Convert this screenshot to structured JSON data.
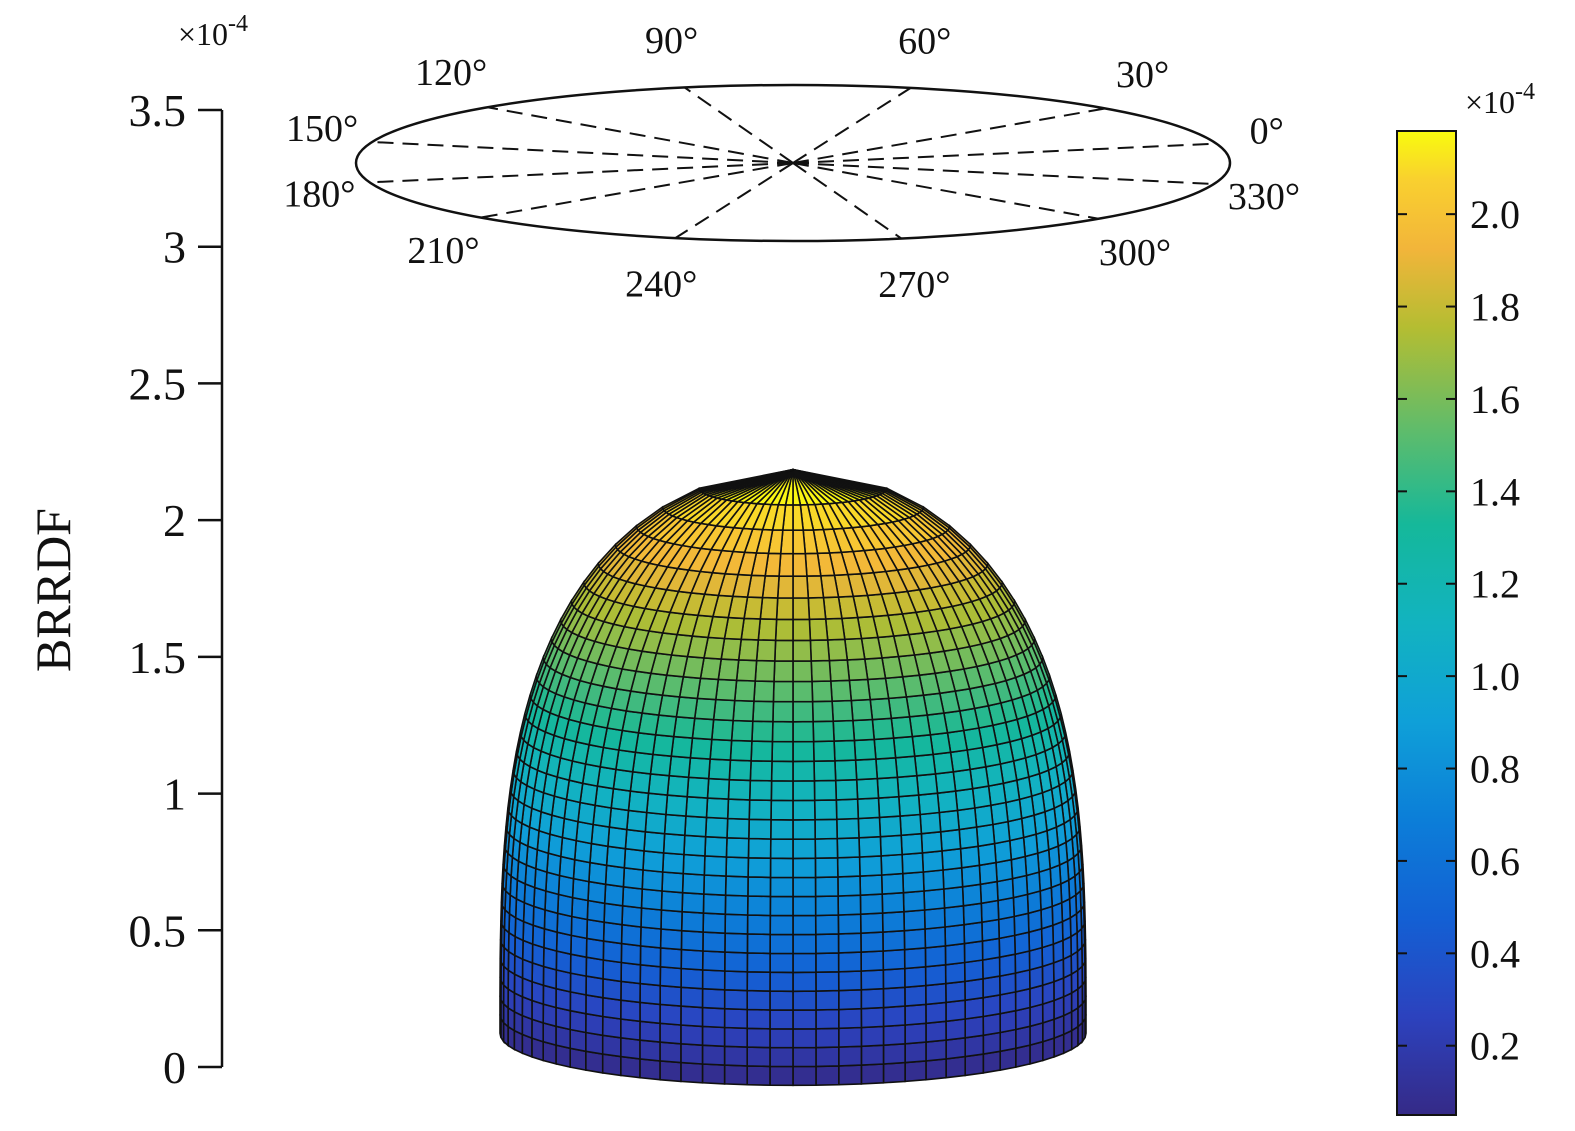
{
  "chart_data": {
    "type": "surface",
    "ylabel": "BRRDF",
    "y_multiplier": "×10-4",
    "y_multiplier_base": "×10",
    "y_multiplier_exp": "-4",
    "yticks": [
      "0",
      "0.5",
      "1",
      "1.5",
      "2",
      "2.5",
      "3",
      "3.5"
    ],
    "yticks_values": [
      0,
      0.5,
      1,
      1.5,
      2,
      2.5,
      3,
      3.5
    ],
    "ylim": [
      0,
      3.5
    ],
    "azimuth_labels": [
      "0°",
      "30°",
      "60°",
      "90°",
      "120°",
      "150°",
      "180°",
      "210°",
      "240°",
      "270°",
      "300°",
      "330°"
    ],
    "azimuth_values": [
      0,
      30,
      60,
      90,
      120,
      150,
      180,
      210,
      240,
      270,
      300,
      330
    ],
    "surface": {
      "max_value": 2.2,
      "min_value": 0.05,
      "shape": "dome"
    },
    "colorbar": {
      "multiplier": "×10-4",
      "multiplier_base": "×10",
      "multiplier_exp": "-4",
      "ticks": [
        "0.2",
        "0.4",
        "0.6",
        "0.8",
        "1.0",
        "1.2",
        "1.4",
        "1.6",
        "1.8",
        "2.0"
      ],
      "tick_values": [
        0.2,
        0.4,
        0.6,
        0.8,
        1.0,
        1.2,
        1.4,
        1.6,
        1.8,
        2.0
      ],
      "range": [
        0.05,
        2.18
      ],
      "colormap": "parula"
    }
  }
}
